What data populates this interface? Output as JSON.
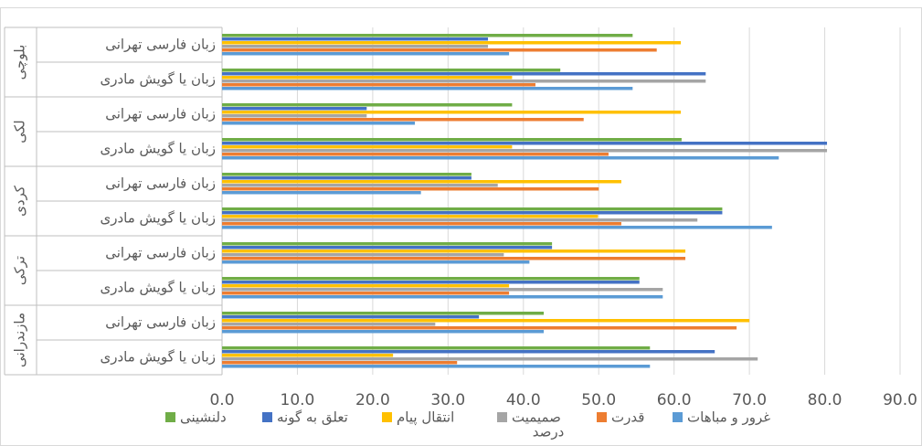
{
  "chart_data": {
    "type": "bar",
    "orientation": "horizontal",
    "groups": [
      {
        "name": "بلوچی",
        "categories": [
          "زبان فارسی تهرانی",
          "زبان یا گویش مادری"
        ]
      },
      {
        "name": "لکی",
        "categories": [
          "زبان فارسی تهرانی",
          "زبان یا گویش مادری"
        ]
      },
      {
        "name": "کردی",
        "categories": [
          "زبان فارسی تهرانی",
          "زبان یا گویش مادری"
        ]
      },
      {
        "name": "ترکی",
        "categories": [
          "زبان فارسی تهرانی",
          "زبان یا گویش مادری"
        ]
      },
      {
        "name": "مازندرانی",
        "categories": [
          "زبان فارسی تهرانی",
          "زبان یا گویش مادری"
        ]
      }
    ],
    "series": [
      {
        "name": "غرور و مباهات",
        "color": "#5b9bd5",
        "values": [
          38.1,
          54.5,
          25.6,
          73.9,
          26.4,
          73.0,
          40.8,
          58.5,
          42.7,
          56.8
        ]
      },
      {
        "name": "قدرت",
        "color": "#ed7d31",
        "values": [
          57.7,
          41.6,
          48.0,
          51.3,
          50.0,
          53.0,
          61.5,
          38.1,
          68.3,
          31.2
        ]
      },
      {
        "name": "صمیمیت",
        "color": "#a5a5a5",
        "values": [
          35.3,
          64.2,
          19.2,
          80.3,
          36.6,
          63.1,
          37.4,
          58.5,
          28.3,
          71.1
        ]
      },
      {
        "name": "انتقال پیام",
        "color": "#ffc000",
        "values": [
          60.9,
          38.5,
          60.9,
          38.5,
          53.0,
          49.9,
          61.5,
          38.1,
          70.0,
          22.7
        ]
      },
      {
        "name": "تعلق به گونه",
        "color": "#4472c4",
        "values": [
          35.3,
          64.2,
          19.2,
          80.3,
          33.1,
          66.4,
          43.8,
          55.4,
          34.1,
          65.4
        ]
      },
      {
        "name": "دلنشینی",
        "color": "#70ad47",
        "values": [
          54.5,
          44.9,
          38.5,
          61.0,
          33.1,
          66.4,
          43.8,
          55.4,
          42.7,
          56.8
        ]
      }
    ],
    "xlim": [
      0,
      90
    ],
    "xticks": [
      {
        "value": 0,
        "label": "0.0"
      },
      {
        "value": 10,
        "label": "10.0"
      },
      {
        "value": 20,
        "label": "20.0"
      },
      {
        "value": 30,
        "label": "30.0"
      },
      {
        "value": 40,
        "label": "40.0"
      },
      {
        "value": 50,
        "label": "50.0"
      },
      {
        "value": 60,
        "label": "60.0"
      },
      {
        "value": 70,
        "label": "70.0"
      },
      {
        "value": 80,
        "label": "80.0"
      },
      {
        "value": 90,
        "label": "90.0"
      }
    ],
    "x_label": "درصد",
    "grid": true
  }
}
